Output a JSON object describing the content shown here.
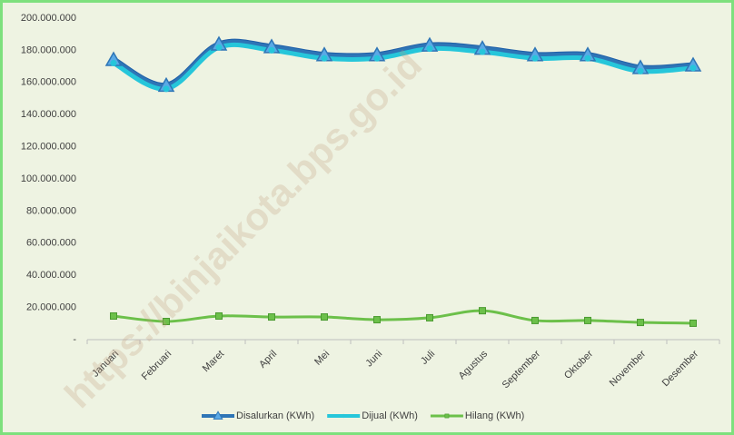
{
  "chart_data": {
    "type": "line",
    "categories": [
      "Januari",
      "Februari",
      "Maret",
      "April",
      "Mei",
      "Juni",
      "Juli",
      "Agustus",
      "September",
      "Oktober",
      "November",
      "Desember"
    ],
    "series": [
      {
        "name": "Disalurkan (KWh)",
        "color": "#2e75b6",
        "marker": "triangle",
        "values": [
          174000000,
          158000000,
          183600000,
          182000000,
          177000000,
          177000000,
          183000000,
          181000000,
          177000000,
          177000000,
          169000000,
          170600000
        ]
      },
      {
        "name": "Dijual (KWh)",
        "color": "#26c6da",
        "marker": "circle",
        "values": [
          172000000,
          156000000,
          181800000,
          180000000,
          175000000,
          175000000,
          181000000,
          179000000,
          175000000,
          175000000,
          167000000,
          169000000
        ]
      },
      {
        "name": "Hilang (KWh)",
        "color": "#6cc04a",
        "marker": "square",
        "values": [
          14700000,
          11300000,
          14700000,
          14100000,
          14100000,
          12400000,
          13600000,
          18000000,
          11900000,
          11900000,
          10700000,
          10200000
        ]
      }
    ],
    "ylim": [
      0,
      200000000
    ],
    "yticks": [
      {
        "value": 0,
        "label": "-"
      },
      {
        "value": 20000000,
        "label": "20.000.000"
      },
      {
        "value": 40000000,
        "label": "40.000.000"
      },
      {
        "value": 60000000,
        "label": "60.000.000"
      },
      {
        "value": 80000000,
        "label": "80.000.000"
      },
      {
        "value": 100000000,
        "label": "100.000.000"
      },
      {
        "value": 120000000,
        "label": "120.000.000"
      },
      {
        "value": 140000000,
        "label": "140.000.000"
      },
      {
        "value": 160000000,
        "label": "160.000.000"
      },
      {
        "value": 180000000,
        "label": "180.000.000"
      },
      {
        "value": 200000000,
        "label": "200.000.000"
      }
    ],
    "grid": false,
    "legend": "bottom",
    "watermark": "https://binjaikota.bps.go.id"
  }
}
